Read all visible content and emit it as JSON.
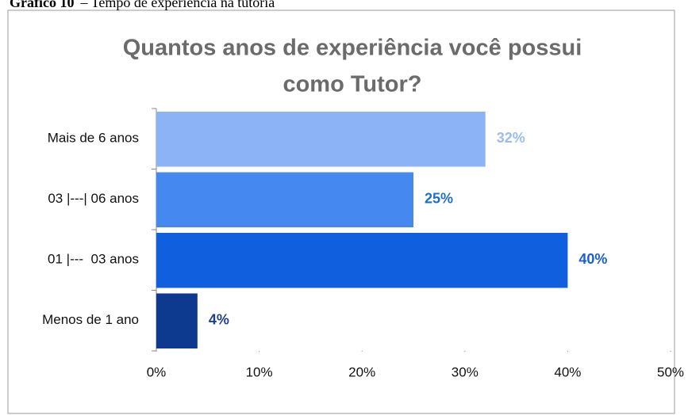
{
  "caption": {
    "label": "Gráfico 10",
    "text": "– Tempo de experiência na tutoria"
  },
  "chart_data": {
    "type": "barh",
    "title": [
      "Quantos anos de experiência você possui",
      "como Tutor?"
    ],
    "categories": [
      "Mais de 6 anos",
      "03 |---| 06 anos",
      "01 |---  03 anos",
      "Menos de 1 ano"
    ],
    "values": [
      32,
      25,
      40,
      4
    ],
    "value_labels": [
      "32%",
      "25%",
      "40%",
      "4%"
    ],
    "colors": [
      "#8db3f7",
      "#4589f0",
      "#0f5fdf",
      "#0d3a8e"
    ],
    "label_colors": [
      "#9bbcf2",
      "#1d6fc4",
      "#1b5fd0",
      "#1d3f92"
    ],
    "xlim": [
      0,
      50
    ],
    "xticks": [
      {
        "value": 0,
        "label": "0%"
      },
      {
        "value": 10,
        "label": "10%"
      },
      {
        "value": 20,
        "label": "20%"
      },
      {
        "value": 30,
        "label": "30%"
      },
      {
        "value": 40,
        "label": "40%"
      },
      {
        "value": 50,
        "label": "50%"
      }
    ],
    "grid": false
  }
}
